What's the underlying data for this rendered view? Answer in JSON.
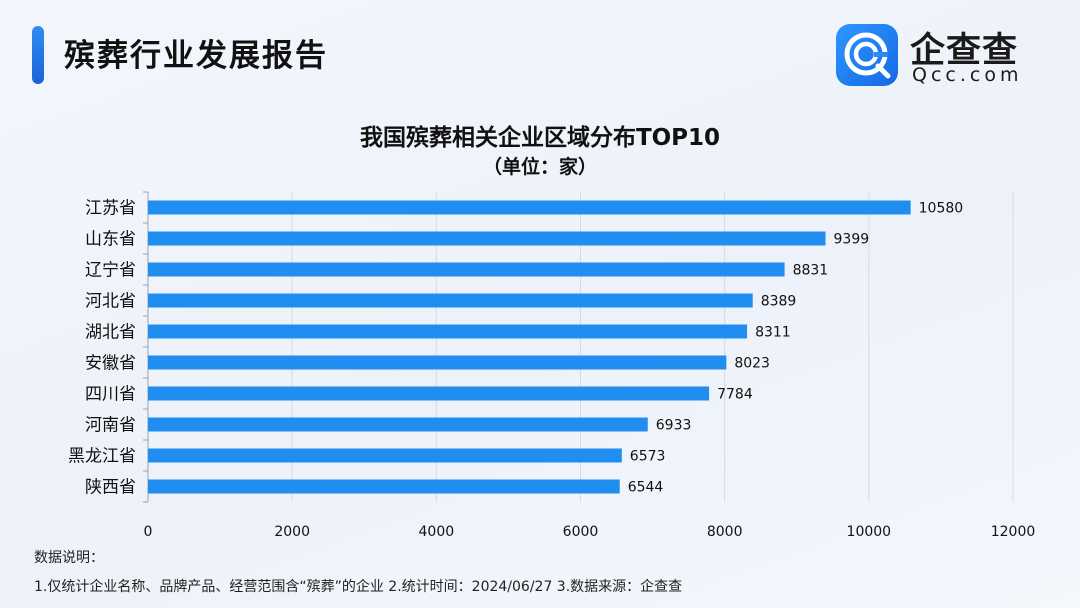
{
  "header": {
    "title": "殡葬行业发展报告"
  },
  "brand": {
    "name": "企查查",
    "domain": "Qcc.com",
    "icon": "qcc-logo-icon",
    "color": "#1f7ef0"
  },
  "footnote": {
    "heading": "数据说明：",
    "text": "1.仅统计企业名称、品牌产品、经营范围含“殡葬”的企业  2.统计时间：2024/06/27  3.数据来源：企查查"
  },
  "chart_data": {
    "type": "bar",
    "orientation": "horizontal",
    "title": "我国殡葬相关企业区域分布TOP10",
    "unit_label": "（单位：家）",
    "categories": [
      "江苏省",
      "山东省",
      "辽宁省",
      "河北省",
      "湖北省",
      "安徽省",
      "四川省",
      "河南省",
      "黑龙江省",
      "陕西省"
    ],
    "values": [
      10580,
      9399,
      8831,
      8389,
      8311,
      8023,
      7784,
      6933,
      6573,
      6544
    ],
    "value_labels": [
      "10580",
      "9399",
      "8831",
      "8389",
      "8311",
      "8023",
      "7784",
      "6933",
      "6573",
      "6544"
    ],
    "xlim": [
      0,
      12000
    ],
    "xticks": [
      0,
      2000,
      4000,
      6000,
      8000,
      10000,
      12000
    ],
    "xtick_labels": [
      "0",
      "2000",
      "4000",
      "6000",
      "8000",
      "10000",
      "12000"
    ],
    "bar_color": "#1f8ef0",
    "grid": true
  }
}
